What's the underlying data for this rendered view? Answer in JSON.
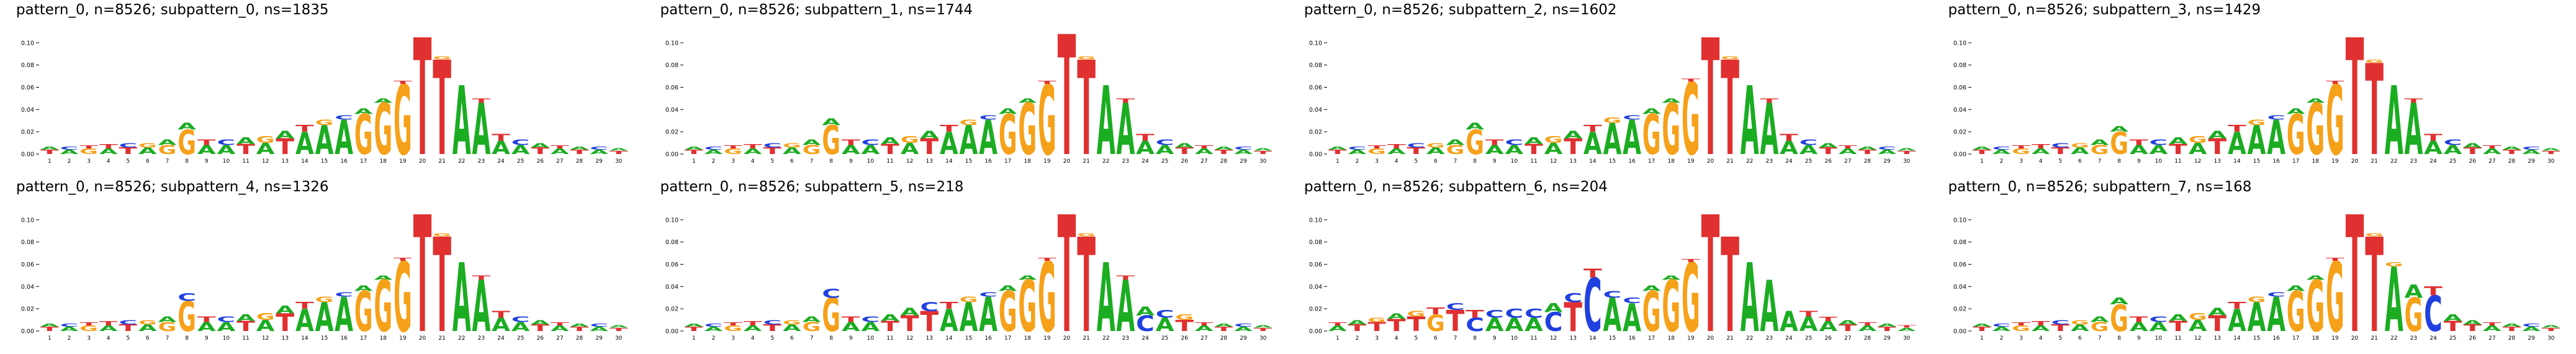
{
  "page": {
    "background": "#ffffff"
  },
  "chart_data": {
    "type": "bar",
    "variant": "dna-sequence-logo-grid",
    "grid": {
      "rows": 2,
      "cols": 4
    },
    "ylim": [
      0,
      0.115
    ],
    "y_tick_values": [
      0,
      0.02,
      0.04,
      0.06,
      0.08,
      0.1
    ],
    "y_tick_labels": [
      "0.00",
      "0.02",
      "0.04",
      "0.06",
      "0.08",
      "0.10"
    ],
    "x_ticks": [
      1,
      2,
      3,
      4,
      5,
      6,
      7,
      8,
      9,
      10,
      11,
      12,
      13,
      14,
      15,
      16,
      17,
      18,
      19,
      20,
      21,
      22,
      23,
      24,
      25,
      26,
      27,
      28,
      29,
      30
    ],
    "letter_colors": {
      "A": "#1bac22",
      "C": "#2040df",
      "G": "#f6a11a",
      "T": "#e03030"
    },
    "base_positions": [
      [
        [
          "T",
          0.004
        ],
        [
          "A",
          0.003
        ]
      ],
      [
        [
          "A",
          0.004
        ],
        [
          "C",
          0.003
        ]
      ],
      [
        [
          "G",
          0.005
        ],
        [
          "T",
          0.003
        ]
      ],
      [
        [
          "A",
          0.005
        ],
        [
          "T",
          0.004
        ]
      ],
      [
        [
          "T",
          0.006
        ],
        [
          "C",
          0.004
        ]
      ],
      [
        [
          "A",
          0.006
        ],
        [
          "G",
          0.004
        ]
      ],
      [
        [
          "G",
          0.008
        ],
        [
          "A",
          0.005
        ]
      ],
      [
        [
          "G",
          0.022
        ],
        [
          "A",
          0.006
        ]
      ],
      [
        [
          "A",
          0.008
        ],
        [
          "T",
          0.005
        ]
      ],
      [
        [
          "A",
          0.008
        ],
        [
          "C",
          0.005
        ]
      ],
      [
        [
          "T",
          0.009
        ],
        [
          "A",
          0.006
        ]
      ],
      [
        [
          "A",
          0.01
        ],
        [
          "G",
          0.006
        ]
      ],
      [
        [
          "T",
          0.014
        ],
        [
          "A",
          0.007
        ]
      ],
      [
        [
          "A",
          0.02
        ],
        [
          "T",
          0.006
        ]
      ],
      [
        [
          "A",
          0.026
        ],
        [
          "G",
          0.005
        ]
      ],
      [
        [
          "A",
          0.031
        ],
        [
          "C",
          0.004
        ]
      ],
      [
        [
          "G",
          0.036
        ],
        [
          "A",
          0.005
        ]
      ],
      [
        [
          "G",
          0.046
        ],
        [
          "A",
          0.004
        ]
      ],
      [
        [
          "G",
          0.063
        ],
        [
          "T",
          0.003
        ]
      ],
      [
        [
          "T",
          0.105
        ]
      ],
      [
        [
          "T",
          0.085
        ],
        [
          "G",
          0.003
        ]
      ],
      [
        [
          "A",
          0.062
        ]
      ],
      [
        [
          "A",
          0.046
        ],
        [
          "T",
          0.004
        ]
      ],
      [
        [
          "A",
          0.012
        ],
        [
          "T",
          0.006
        ]
      ],
      [
        [
          "A",
          0.008
        ],
        [
          "C",
          0.005
        ]
      ],
      [
        [
          "T",
          0.006
        ],
        [
          "A",
          0.004
        ]
      ],
      [
        [
          "A",
          0.005
        ],
        [
          "T",
          0.003
        ]
      ],
      [
        [
          "T",
          0.004
        ],
        [
          "A",
          0.003
        ]
      ],
      [
        [
          "A",
          0.004
        ],
        [
          "C",
          0.003
        ]
      ],
      [
        [
          "T",
          0.003
        ],
        [
          "A",
          0.002
        ]
      ]
    ],
    "panels": [
      {
        "title": "pattern_0, n=8526; subpattern_0, ns=1835",
        "overrides": {}
      },
      {
        "title": "pattern_0, n=8526; subpattern_1, ns=1744",
        "overrides": {
          "8": [
            [
              "G",
              0.026
            ],
            [
              "A",
              0.006
            ]
          ],
          "20": [
            [
              "T",
              0.108
            ]
          ]
        }
      },
      {
        "title": "pattern_0, n=8526; subpattern_2, ns=1602",
        "overrides": {
          "15": [
            [
              "A",
              0.028
            ],
            [
              "G",
              0.005
            ]
          ],
          "19": [
            [
              "G",
              0.065
            ],
            [
              "T",
              0.003
            ]
          ]
        }
      },
      {
        "title": "pattern_0, n=8526; subpattern_3, ns=1429",
        "overrides": {
          "8": [
            [
              "G",
              0.02
            ],
            [
              "A",
              0.005
            ]
          ],
          "21": [
            [
              "T",
              0.082
            ],
            [
              "G",
              0.003
            ]
          ]
        }
      },
      {
        "title": "pattern_0, n=8526; subpattern_4, ns=1326",
        "overrides": {
          "8": [
            [
              "G",
              0.027
            ],
            [
              "C",
              0.007
            ]
          ],
          "13": [
            [
              "T",
              0.016
            ],
            [
              "A",
              0.007
            ]
          ]
        }
      },
      {
        "title": "pattern_0, n=8526; subpattern_5, ns=218",
        "overrides": {
          "8": [
            [
              "G",
              0.03
            ],
            [
              "C",
              0.008
            ]
          ],
          "12": [
            [
              "T",
              0.014
            ],
            [
              "A",
              0.007
            ]
          ],
          "13": [
            [
              "T",
              0.018
            ],
            [
              "C",
              0.008
            ]
          ],
          "24": [
            [
              "C",
              0.014
            ],
            [
              "A",
              0.008
            ]
          ],
          "25": [
            [
              "A",
              0.012
            ],
            [
              "C",
              0.007
            ]
          ],
          "26": [
            [
              "T",
              0.01
            ],
            [
              "G",
              0.005
            ]
          ]
        }
      },
      {
        "title": "pattern_0, n=8526; subpattern_6, ns=204",
        "positions": [
          [
            [
              "A",
              0.005
            ],
            [
              "T",
              0.003
            ]
          ],
          [
            [
              "T",
              0.006
            ],
            [
              "A",
              0.004
            ]
          ],
          [
            [
              "T",
              0.008
            ],
            [
              "G",
              0.004
            ]
          ],
          [
            [
              "T",
              0.011
            ],
            [
              "A",
              0.005
            ]
          ],
          [
            [
              "T",
              0.013
            ],
            [
              "G",
              0.005
            ]
          ],
          [
            [
              "G",
              0.015
            ],
            [
              "T",
              0.006
            ]
          ],
          [
            [
              "T",
              0.019
            ],
            [
              "C",
              0.006
            ]
          ],
          [
            [
              "C",
              0.012
            ],
            [
              "T",
              0.007
            ]
          ],
          [
            [
              "A",
              0.012
            ],
            [
              "C",
              0.007
            ]
          ],
          [
            [
              "A",
              0.012
            ],
            [
              "C",
              0.008
            ]
          ],
          [
            [
              "A",
              0.012
            ],
            [
              "C",
              0.008
            ]
          ],
          [
            [
              "C",
              0.017
            ],
            [
              "A",
              0.008
            ]
          ],
          [
            [
              "T",
              0.026
            ],
            [
              "C",
              0.008
            ]
          ],
          [
            [
              "C",
              0.048
            ],
            [
              "T",
              0.008
            ]
          ],
          [
            [
              "A",
              0.03
            ],
            [
              "C",
              0.006
            ]
          ],
          [
            [
              "A",
              0.025
            ],
            [
              "C",
              0.005
            ]
          ],
          [
            [
              "G",
              0.036
            ],
            [
              "A",
              0.005
            ]
          ],
          [
            [
              "G",
              0.046
            ],
            [
              "A",
              0.004
            ]
          ],
          [
            [
              "G",
              0.062
            ],
            [
              "T",
              0.003
            ]
          ],
          [
            [
              "T",
              0.105
            ]
          ],
          [
            [
              "T",
              0.085
            ]
          ],
          [
            [
              "A",
              0.062
            ]
          ],
          [
            [
              "A",
              0.046
            ]
          ],
          [
            [
              "A",
              0.018
            ]
          ],
          [
            [
              "A",
              0.013
            ],
            [
              "T",
              0.005
            ]
          ],
          [
            [
              "A",
              0.009
            ],
            [
              "T",
              0.004
            ]
          ],
          [
            [
              "T",
              0.006
            ],
            [
              "A",
              0.004
            ]
          ],
          [
            [
              "A",
              0.005
            ],
            [
              "T",
              0.003
            ]
          ],
          [
            [
              "T",
              0.004
            ],
            [
              "A",
              0.003
            ]
          ],
          [
            [
              "A",
              0.003
            ],
            [
              "T",
              0.002
            ]
          ]
        ]
      },
      {
        "title": "pattern_0, n=8526; subpattern_7, ns=168",
        "overrides": {
          "8": [
            [
              "G",
              0.024
            ],
            [
              "A",
              0.006
            ]
          ],
          "22": [
            [
              "A",
              0.058
            ],
            [
              "G",
              0.004
            ]
          ],
          "23": [
            [
              "G",
              0.03
            ],
            [
              "A",
              0.012
            ]
          ],
          "24": [
            [
              "C",
              0.032
            ],
            [
              "T",
              0.008
            ]
          ],
          "25": [
            [
              "T",
              0.009
            ],
            [
              "A",
              0.006
            ]
          ]
        }
      }
    ]
  }
}
